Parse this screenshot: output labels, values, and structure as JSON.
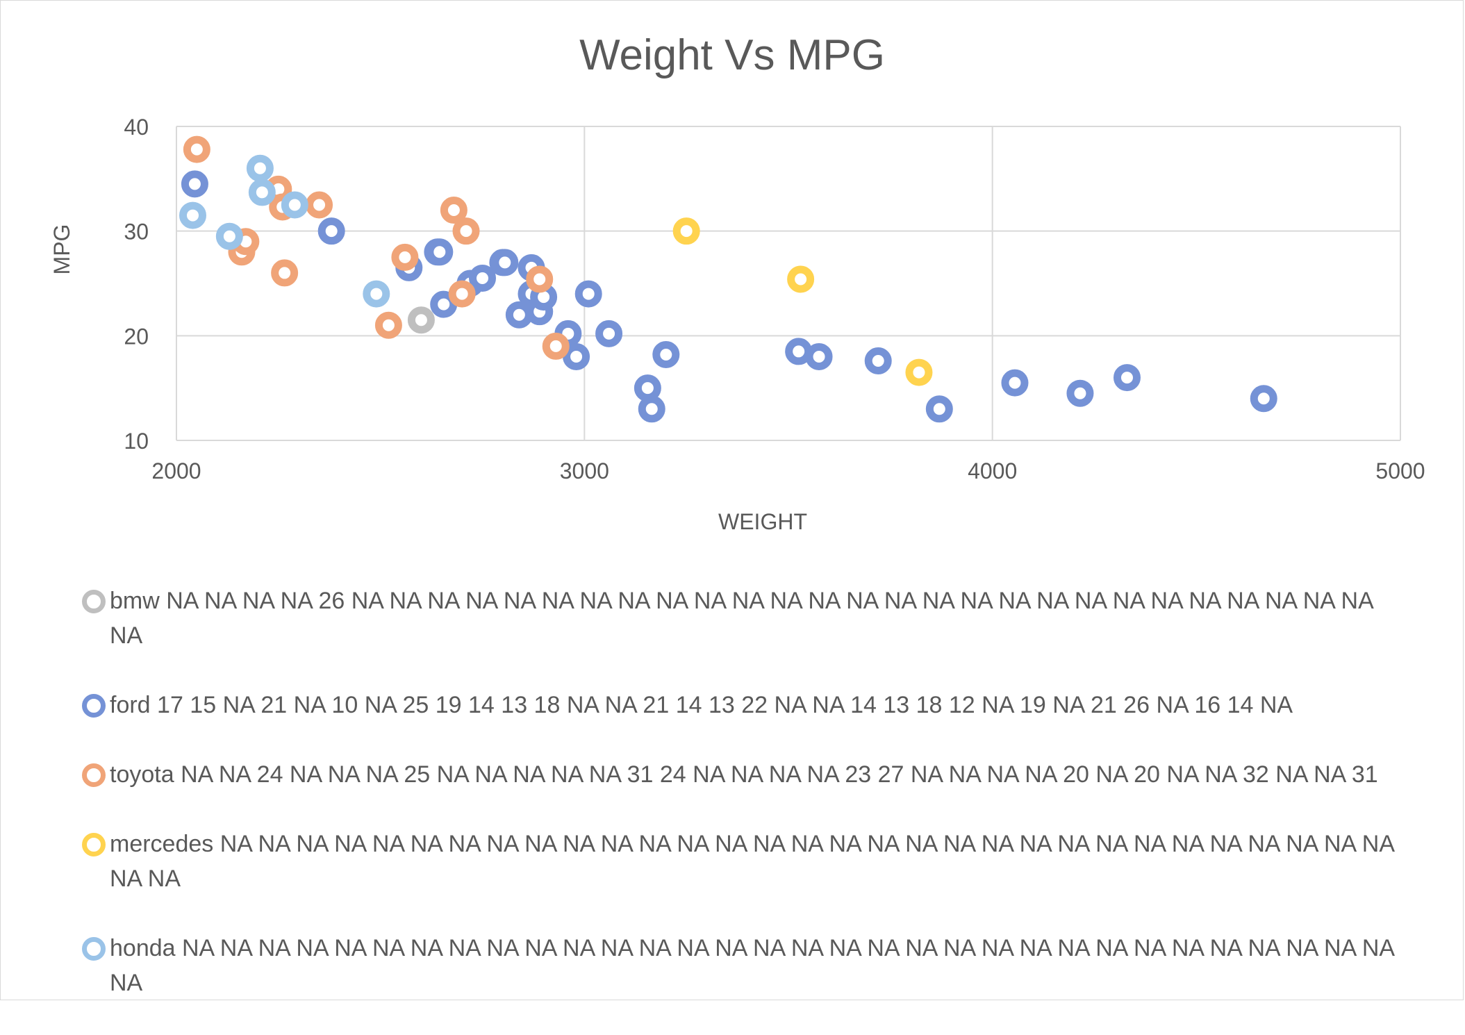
{
  "chart_data": {
    "type": "scatter",
    "title": "Weight Vs MPG",
    "xlabel": "WEIGHT",
    "ylabel": "MPG",
    "xlim": [
      2000,
      5000
    ],
    "ylim": [
      10,
      40
    ],
    "xticks": [
      2000,
      3000,
      4000,
      5000
    ],
    "yticks": [
      10,
      20,
      30,
      40
    ],
    "grid": true,
    "legend_position": "bottom",
    "series": [
      {
        "name": "bmw",
        "legend_label": "bmw NA NA NA NA 26 NA NA NA NA NA NA NA NA NA NA NA NA NA NA NA NA NA NA NA NA NA NA NA NA NA NA NA NA",
        "color": "#bfbfbf",
        "points": [
          [
            2600,
            21.5
          ]
        ]
      },
      {
        "name": "ford",
        "legend_label": "ford 17 15 NA 21 NA 10 NA 25 19 14 13 18 NA NA 21 14 13 22 NA NA 14 13 18 12 NA 19 NA 21 26 NA 16 14 NA",
        "color": "#7592d6",
        "points": [
          [
            2045,
            34.5
          ],
          [
            2380,
            30
          ],
          [
            2570,
            26.5
          ],
          [
            2640,
            28
          ],
          [
            2645,
            28
          ],
          [
            2655,
            23
          ],
          [
            2720,
            25
          ],
          [
            2750,
            25.5
          ],
          [
            2800,
            27
          ],
          [
            2805,
            27
          ],
          [
            2840,
            22
          ],
          [
            2870,
            26.5
          ],
          [
            2870,
            24
          ],
          [
            2890,
            22.3
          ],
          [
            2900,
            23.7
          ],
          [
            2960,
            20.2
          ],
          [
            2980,
            18
          ],
          [
            3010,
            24
          ],
          [
            3060,
            20.2
          ],
          [
            3155,
            15
          ],
          [
            3165,
            13
          ],
          [
            3200,
            18.2
          ],
          [
            3525,
            18.5
          ],
          [
            3575,
            18
          ],
          [
            3720,
            17.6
          ],
          [
            3870,
            13
          ],
          [
            4055,
            15.5
          ],
          [
            4215,
            14.5
          ],
          [
            4330,
            16
          ],
          [
            4665,
            14
          ]
        ]
      },
      {
        "name": "toyota",
        "legend_label": "toyota NA NA 24 NA NA NA 25 NA NA NA NA NA 31 24 NA NA NA NA 23 27 NA NA NA NA 20 NA 20 NA NA 32 NA NA 31",
        "color": "#f0a478",
        "points": [
          [
            2050,
            37.8
          ],
          [
            2160,
            28
          ],
          [
            2170,
            29
          ],
          [
            2250,
            34
          ],
          [
            2260,
            32.3
          ],
          [
            2265,
            26
          ],
          [
            2350,
            32.5
          ],
          [
            2520,
            21
          ],
          [
            2560,
            27.5
          ],
          [
            2680,
            32
          ],
          [
            2700,
            24
          ],
          [
            2710,
            30
          ],
          [
            2890,
            25.4
          ],
          [
            2930,
            19
          ]
        ]
      },
      {
        "name": "mercedes",
        "legend_label": "mercedes NA NA NA NA NA NA NA NA NA NA NA NA NA NA NA NA NA NA NA NA NA NA NA NA NA NA NA NA NA NA NA NA NA",
        "color": "#ffd34f",
        "points": [
          [
            3250,
            30
          ],
          [
            3530,
            25.4
          ],
          [
            3820,
            16.5
          ]
        ]
      },
      {
        "name": "honda",
        "legend_label": "honda NA NA NA NA NA NA NA NA NA NA NA NA NA NA NA NA NA NA NA NA NA NA NA NA NA NA NA NA NA NA NA NA NA",
        "color": "#9ac3e8",
        "points": [
          [
            2040,
            31.5
          ],
          [
            2130,
            29.5
          ],
          [
            2205,
            36
          ],
          [
            2210,
            33.7
          ],
          [
            2290,
            32.5
          ],
          [
            2490,
            24
          ]
        ]
      }
    ]
  }
}
